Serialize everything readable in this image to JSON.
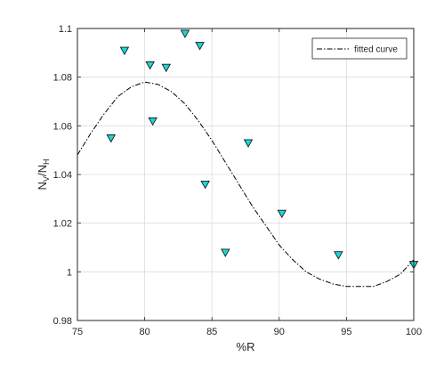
{
  "chart_data": {
    "type": "scatter",
    "title": "",
    "xlabel": "%R",
    "ylabel": {
      "main": "N",
      "sub1": "V",
      "sep": "/N",
      "sub2": "H"
    },
    "xlim": [
      75,
      100
    ],
    "ylim": [
      0.98,
      1.1
    ],
    "grid": true,
    "legend": {
      "position": "top-right",
      "entries": [
        "fitted curve"
      ]
    },
    "x_ticks": [
      75,
      80,
      85,
      90,
      95,
      100
    ],
    "x_tick_labels": [
      "75",
      "80",
      "85",
      "90",
      "95",
      "100"
    ],
    "y_ticks": [
      0.98,
      1.0,
      1.02,
      1.04,
      1.06,
      1.08,
      1.1
    ],
    "y_tick_labels": [
      "0.98",
      "1",
      "1.02",
      "1.04",
      "1.06",
      "1.08",
      "1.1"
    ],
    "series": [
      {
        "kind": "markers",
        "marker": "triangle-down",
        "color": "#19d9d9",
        "points": [
          {
            "x": 77.5,
            "y": 1.055
          },
          {
            "x": 78.5,
            "y": 1.091
          },
          {
            "x": 80.4,
            "y": 1.085
          },
          {
            "x": 80.6,
            "y": 1.062
          },
          {
            "x": 81.6,
            "y": 1.084
          },
          {
            "x": 83.0,
            "y": 1.098
          },
          {
            "x": 84.1,
            "y": 1.093
          },
          {
            "x": 84.5,
            "y": 1.036
          },
          {
            "x": 86.0,
            "y": 1.008
          },
          {
            "x": 87.7,
            "y": 1.053
          },
          {
            "x": 90.2,
            "y": 1.024
          },
          {
            "x": 94.4,
            "y": 1.007
          },
          {
            "x": 100.0,
            "y": 1.003
          }
        ]
      },
      {
        "name": "fitted curve",
        "kind": "line",
        "style": "dash-dot",
        "color": "#000000",
        "points": [
          {
            "x": 75.0,
            "y": 1.048
          },
          {
            "x": 76.0,
            "y": 1.057
          },
          {
            "x": 77.0,
            "y": 1.065
          },
          {
            "x": 78.0,
            "y": 1.072
          },
          {
            "x": 79.0,
            "y": 1.076
          },
          {
            "x": 80.0,
            "y": 1.078
          },
          {
            "x": 81.0,
            "y": 1.077
          },
          {
            "x": 82.0,
            "y": 1.074
          },
          {
            "x": 83.0,
            "y": 1.069
          },
          {
            "x": 84.0,
            "y": 1.062
          },
          {
            "x": 85.0,
            "y": 1.054
          },
          {
            "x": 86.0,
            "y": 1.045
          },
          {
            "x": 87.0,
            "y": 1.036
          },
          {
            "x": 88.0,
            "y": 1.027
          },
          {
            "x": 89.0,
            "y": 1.019
          },
          {
            "x": 90.0,
            "y": 1.011
          },
          {
            "x": 91.0,
            "y": 1.005
          },
          {
            "x": 92.0,
            "y": 1.0
          },
          {
            "x": 93.0,
            "y": 0.997
          },
          {
            "x": 94.0,
            "y": 0.995
          },
          {
            "x": 95.0,
            "y": 0.994
          },
          {
            "x": 96.0,
            "y": 0.994
          },
          {
            "x": 97.0,
            "y": 0.994
          },
          {
            "x": 98.0,
            "y": 0.996
          },
          {
            "x": 99.0,
            "y": 0.999
          },
          {
            "x": 100.0,
            "y": 1.005
          }
        ]
      }
    ]
  }
}
